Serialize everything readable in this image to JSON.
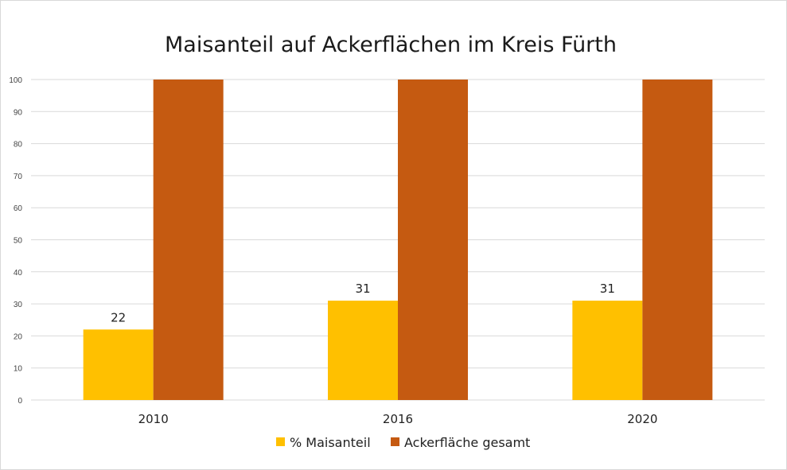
{
  "chart_data": {
    "type": "bar",
    "title": "Maisanteil auf Ackerflächen im Kreis Fürth",
    "xlabel": "",
    "ylabel": "",
    "categories": [
      "2010",
      "2016",
      "2020"
    ],
    "ylim": [
      0,
      100
    ],
    "yticks": [
      0,
      10,
      20,
      30,
      40,
      50,
      60,
      70,
      80,
      90,
      100
    ],
    "grid": true,
    "legend_position": "bottom",
    "series": [
      {
        "name": "% Maisanteil",
        "values": [
          22,
          31,
          31
        ],
        "color": "#FFC000",
        "data_labels": [
          "22",
          "31",
          "31"
        ]
      },
      {
        "name": "Ackerfläche gesamt",
        "values": [
          100,
          100,
          100
        ],
        "color": "#C55A11"
      }
    ]
  }
}
